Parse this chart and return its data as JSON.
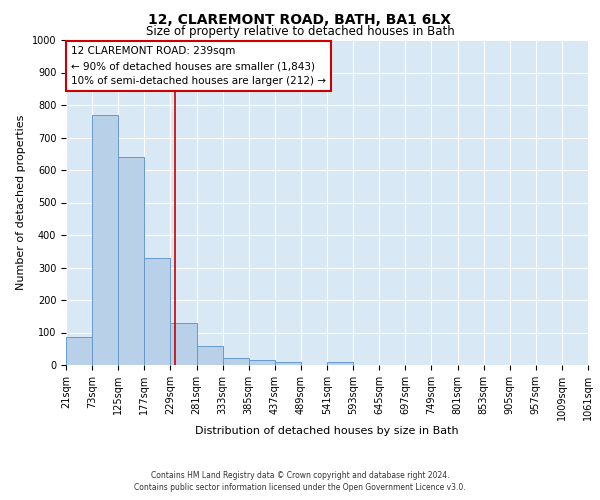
{
  "title": "12, CLAREMONT ROAD, BATH, BA1 6LX",
  "subtitle": "Size of property relative to detached houses in Bath",
  "xlabel": "Distribution of detached houses by size in Bath",
  "ylabel": "Number of detached properties",
  "bar_color": "#b8d0e8",
  "bar_edge_color": "#6699cc",
  "vline_color": "#cc0000",
  "fig_bg_color": "#ffffff",
  "plot_bg_color": "#d8e8f4",
  "grid_color": "#ffffff",
  "bin_edges": [
    21,
    73,
    125,
    177,
    229,
    281,
    333,
    385,
    437,
    489,
    541,
    593,
    645,
    697,
    749,
    801,
    853,
    905,
    957,
    1009,
    1061
  ],
  "bin_labels": [
    "21sqm",
    "73sqm",
    "125sqm",
    "177sqm",
    "229sqm",
    "281sqm",
    "333sqm",
    "385sqm",
    "437sqm",
    "489sqm",
    "541sqm",
    "593sqm",
    "645sqm",
    "697sqm",
    "749sqm",
    "801sqm",
    "853sqm",
    "905sqm",
    "957sqm",
    "1009sqm",
    "1061sqm"
  ],
  "counts": [
    85,
    770,
    640,
    330,
    130,
    60,
    22,
    15,
    10,
    0,
    8,
    0,
    0,
    0,
    0,
    0,
    0,
    0,
    0,
    0
  ],
  "vline_x": 239,
  "annotation_title": "12 CLAREMONT ROAD: 239sqm",
  "annotation_line1": "← 90% of detached houses are smaller (1,843)",
  "annotation_line2": "10% of semi-detached houses are larger (212) →",
  "annotation_box_facecolor": "#ffffff",
  "annotation_box_edgecolor": "#cc0000",
  "ylim": [
    0,
    1000
  ],
  "yticks": [
    0,
    100,
    200,
    300,
    400,
    500,
    600,
    700,
    800,
    900,
    1000
  ],
  "title_fontsize": 10,
  "subtitle_fontsize": 8.5,
  "axis_label_fontsize": 8,
  "tick_fontsize": 7,
  "annotation_fontsize": 7.5,
  "footer_line1": "Contains HM Land Registry data © Crown copyright and database right 2024.",
  "footer_line2": "Contains public sector information licensed under the Open Government Licence v3.0."
}
